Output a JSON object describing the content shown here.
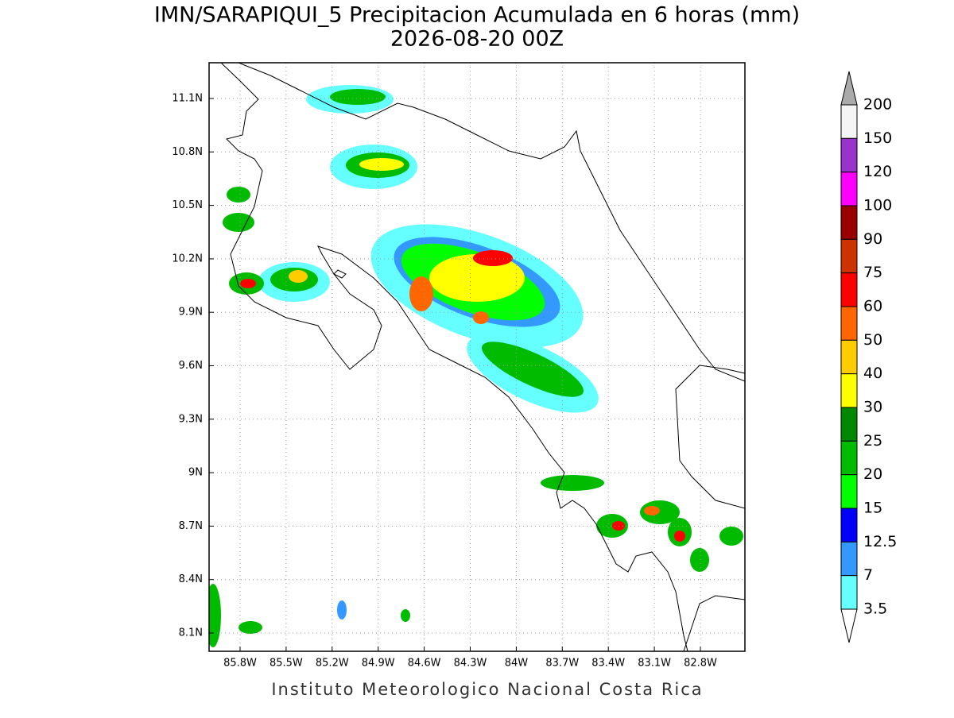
{
  "header": {
    "title": "IMN/SARAPIQUI_5 Precipitacion Acumulada en 6 horas (mm)",
    "subtitle": "2026-08-20 00Z"
  },
  "map": {
    "lon_labels": [
      "85.8W",
      "85.5W",
      "85.2W",
      "84.9W",
      "84.6W",
      "84.3W",
      "84W",
      "83.7W",
      "83.4W",
      "83.1W",
      "82.8W"
    ],
    "lat_labels": [
      "11.1N",
      "10.8N",
      "10.5N",
      "10.2N",
      "9.9N",
      "9.6N",
      "9.3N",
      "9N",
      "8.7N",
      "8.4N",
      "8.1N"
    ]
  },
  "colorbar": {
    "labels": [
      "200",
      "150",
      "120",
      "100",
      "90",
      "75",
      "60",
      "50",
      "40",
      "30",
      "25",
      "20",
      "15",
      "12.5",
      "7",
      "3.5"
    ],
    "colors": [
      "#f5f5f5",
      "#9933cc",
      "#ff00ff",
      "#990000",
      "#cc3300",
      "#ff0000",
      "#ff6600",
      "#ffcc00",
      "#ffff00",
      "#008800",
      "#00bb00",
      "#00ff00",
      "#0000ff",
      "#3399ff",
      "#66ffff"
    ],
    "over_color": "#aaaaaa",
    "under_color": "#ffffff"
  },
  "footer": "Instituto Meteorologico Nacional Costa Rica"
}
